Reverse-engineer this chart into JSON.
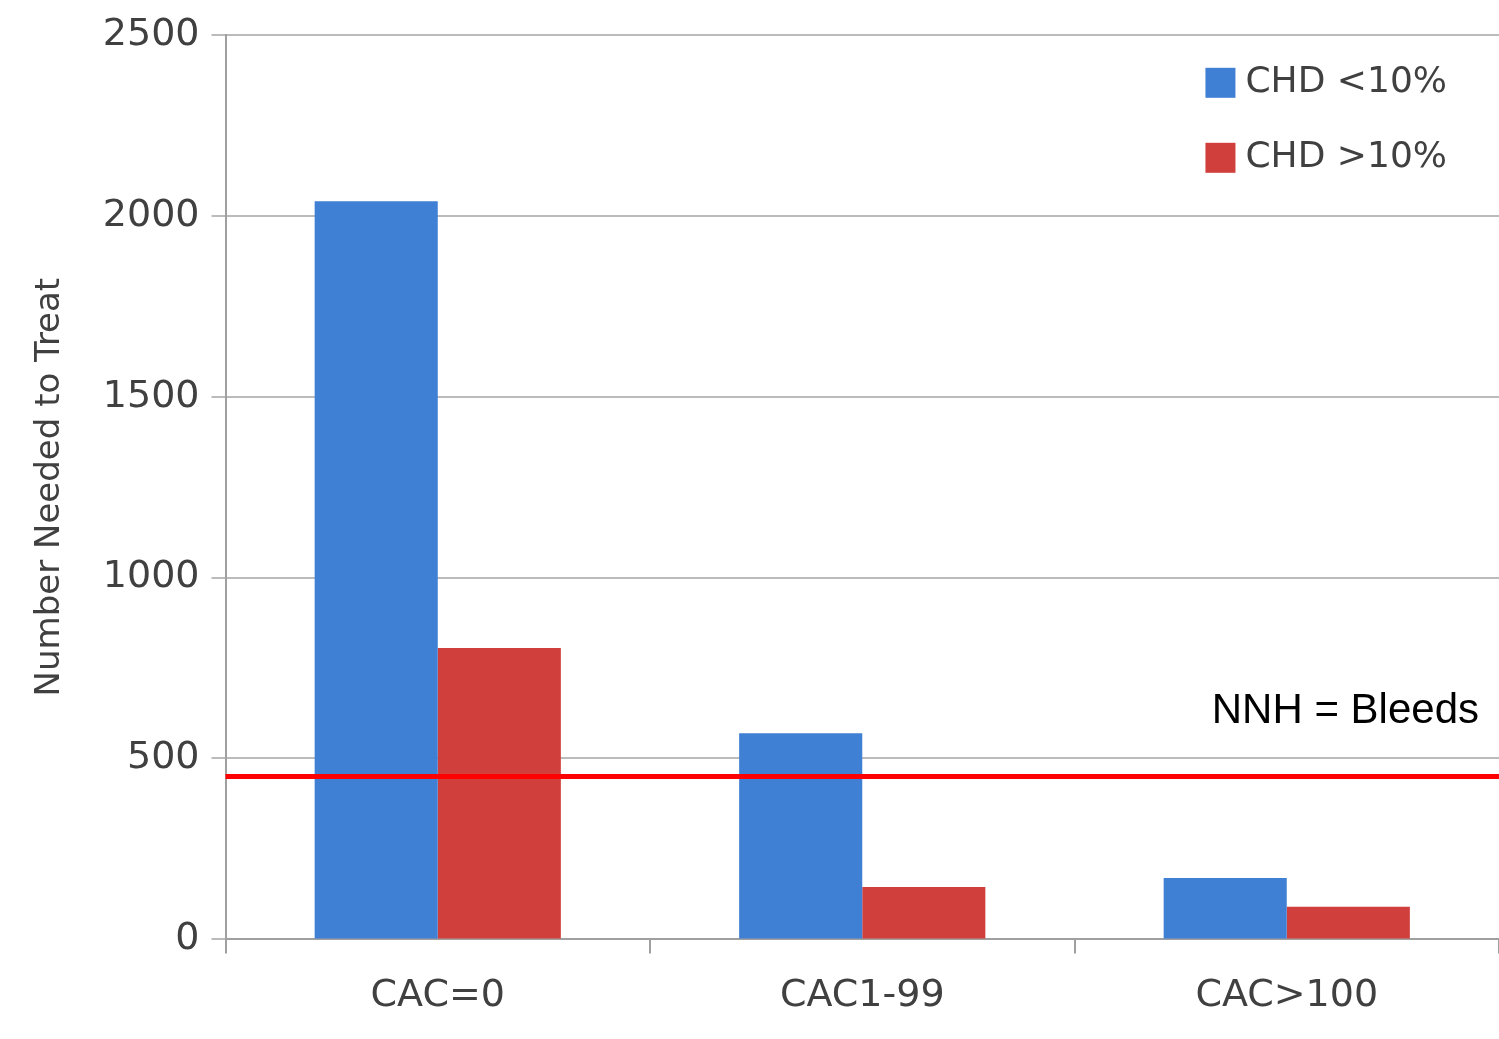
{
  "chart_data": {
    "type": "bar",
    "ylabel": "Number Needed to Treat",
    "categories": [
      "CAC=0",
      "CAC1-99",
      "CAC>100"
    ],
    "series": [
      {
        "name": "CHD <10%",
        "color": "#3f7fd4",
        "values": [
          2040,
          570,
          170
        ]
      },
      {
        "name": "CHD >10%",
        "color": "#d03f3b",
        "values": [
          805,
          145,
          90
        ]
      }
    ],
    "ylim": [
      0,
      2500
    ],
    "yticks": [
      0,
      500,
      1000,
      1500,
      2000,
      2500
    ],
    "grid": "y",
    "legend": "top right",
    "ref_lines": [
      {
        "axis": "y",
        "value": 450,
        "label": "NNH = Bleeds",
        "color": "#ff0000"
      }
    ]
  }
}
